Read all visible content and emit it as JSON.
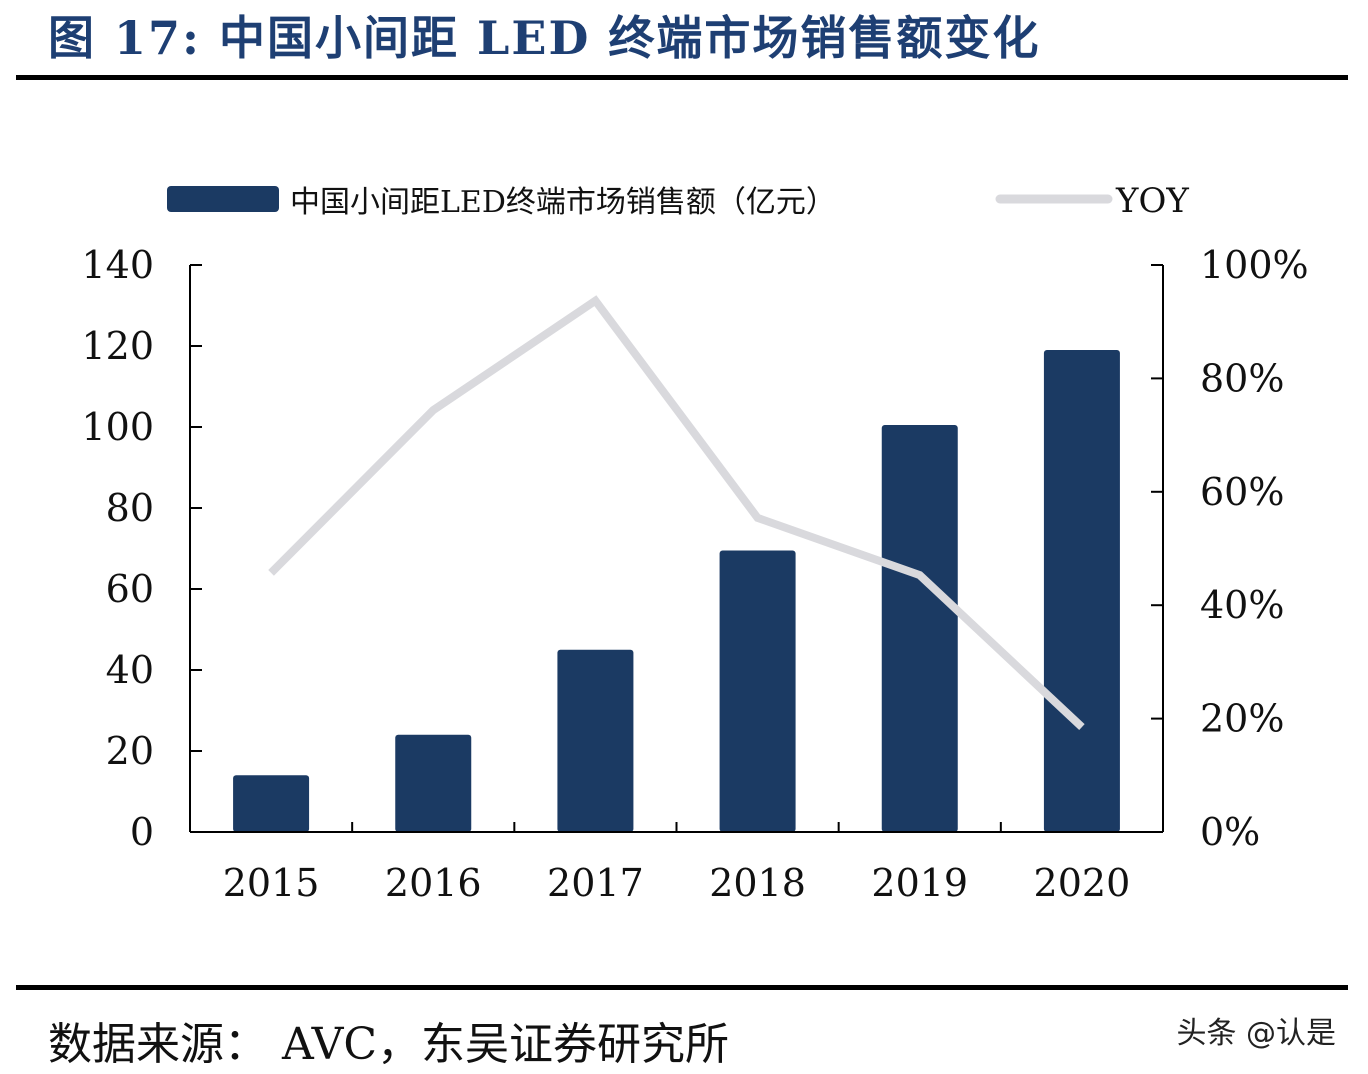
{
  "title": "图 17:  中国小间距 LED 终端市场销售额变化",
  "source": "数据来源： AVC，东吴证券研究所",
  "watermark": "头条 @认是",
  "colors": {
    "bar": "#1b3a63",
    "line": "#d9d9dd",
    "title": "#1e3f73"
  },
  "chart_data": {
    "type": "bar",
    "categories": [
      "2015",
      "2016",
      "2017",
      "2018",
      "2019",
      "2020"
    ],
    "series": [
      {
        "name": "中国小间距LED终端市场销售额（亿元）",
        "type": "bar",
        "axis": "left",
        "values": [
          14,
          24,
          45,
          69.5,
          100.5,
          119
        ]
      },
      {
        "name": "YOY",
        "type": "line",
        "axis": "right",
        "values": [
          45.7,
          74.4,
          93.7,
          55.4,
          45.3,
          18.5
        ]
      }
    ],
    "ylim": [
      0,
      140
    ],
    "yticks": [
      "0",
      "20",
      "40",
      "60",
      "80",
      "100",
      "120",
      "140"
    ],
    "y2lim": [
      0,
      100
    ],
    "y2ticks": [
      "0%",
      "20%",
      "40%",
      "60%",
      "80%",
      "100%"
    ],
    "legend_position": "top",
    "grid": false
  }
}
